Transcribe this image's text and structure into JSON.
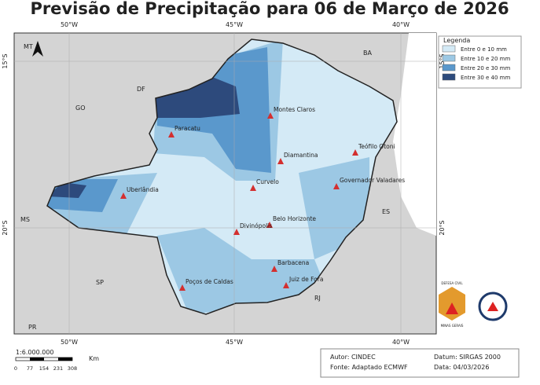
{
  "header": {
    "title": "Previsão de Precipitação para 06 de Março de 2026"
  },
  "map": {
    "top_lon_labels": [
      "50°W",
      "45°W",
      "40°W"
    ],
    "bottom_lon_labels": [
      "50°W",
      "45°W",
      "40°W"
    ],
    "left_lat_labels": [
      "15°S",
      "20°S"
    ],
    "right_lat_labels": [
      "15°S",
      "20°S"
    ],
    "states": [
      "MT",
      "BA",
      "DF",
      "GO",
      "MS",
      "ES",
      "SP",
      "RJ",
      "PR"
    ],
    "cities": [
      "Montes Claros",
      "Paracatu",
      "Teófilo Otoni",
      "Diamantina",
      "Uberlândia",
      "Curvelo",
      "Governador Valadares",
      "Belo Horizonte",
      "Divinópolis",
      "Barbacena",
      "Poços de Caldas",
      "Juiz de Fora"
    ]
  },
  "legend": {
    "title": "Legenda",
    "items": [
      {
        "label": "Entre 0 e 10 mm",
        "color": "#d4eaf6"
      },
      {
        "label": "Entre 10 e 20 mm",
        "color": "#9cc8e4"
      },
      {
        "label": "Entre 20 e 30 mm",
        "color": "#5a98cc"
      },
      {
        "label": "Entre 30 e 40 mm",
        "color": "#2d4a7c"
      }
    ]
  },
  "scale": {
    "ratio": "1:6.000.000",
    "ticks": [
      0,
      77,
      154,
      231,
      308
    ],
    "unit": "Km"
  },
  "footer": {
    "author": "Autor: CINDEC",
    "source": "Fonte: Adaptado ECMWF",
    "datum": "Datum: SIRGAS 2000",
    "date": "Data: 04/03/2026"
  },
  "logo": {
    "line1": "DEFESA CIVIL",
    "line2": "MINAS GERAIS"
  }
}
